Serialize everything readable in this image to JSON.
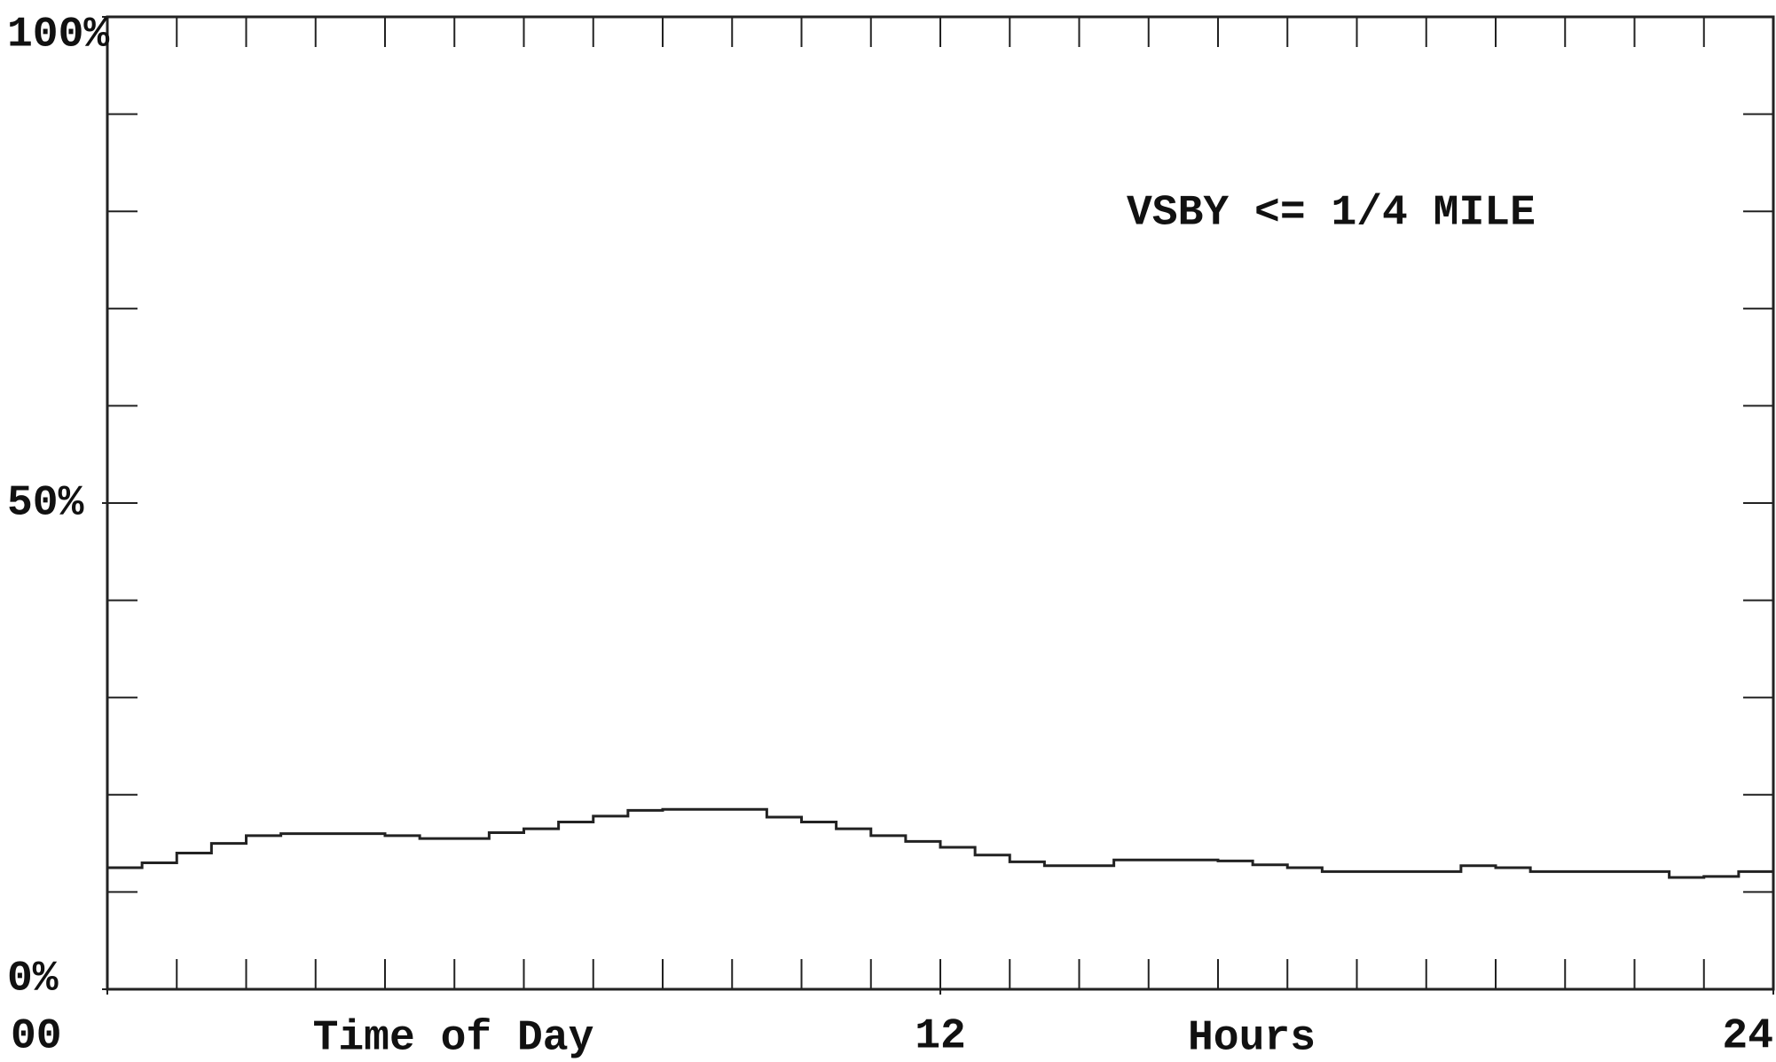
{
  "chart_data": {
    "type": "step",
    "annotation": "VSBY <= 1/4 MILE",
    "x_labels": [
      "Time of Day",
      "Hours"
    ],
    "x": [
      0,
      0.5,
      1,
      1.5,
      2,
      2.5,
      3,
      3.5,
      4,
      4.5,
      5,
      5.5,
      6,
      6.5,
      7,
      7.5,
      8,
      8.5,
      9,
      9.5,
      10,
      10.5,
      11,
      11.5,
      12,
      12.5,
      13,
      13.5,
      14,
      14.5,
      15,
      15.5,
      16,
      16.5,
      17,
      17.5,
      18,
      18.5,
      19,
      19.5,
      20,
      20.5,
      21,
      21.5,
      22,
      22.5,
      23,
      23.5
    ],
    "values": [
      12.5,
      13.0,
      14.0,
      15.0,
      15.8,
      16.0,
      16.0,
      16.0,
      15.8,
      15.5,
      15.5,
      16.1,
      16.5,
      17.2,
      17.8,
      18.4,
      18.5,
      18.5,
      18.5,
      17.7,
      17.2,
      16.5,
      15.8,
      15.2,
      14.6,
      13.8,
      13.1,
      12.7,
      12.7,
      13.3,
      13.3,
      13.3,
      13.2,
      12.8,
      12.5,
      12.1,
      12.1,
      12.1,
      12.1,
      12.7,
      12.5,
      12.1,
      12.1,
      12.1,
      12.1,
      11.5,
      11.6,
      12.1
    ],
    "color": "#222222",
    "xlim": [
      0,
      24
    ],
    "xticks": [
      {
        "value": 0,
        "label": "00"
      },
      12,
      24
    ],
    "ylim": [
      0,
      100
    ],
    "yticks": [
      {
        "value": 0,
        "label": "0%"
      },
      {
        "value": 50,
        "label": "50%"
      },
      {
        "value": 100,
        "label": "100%"
      }
    ]
  }
}
